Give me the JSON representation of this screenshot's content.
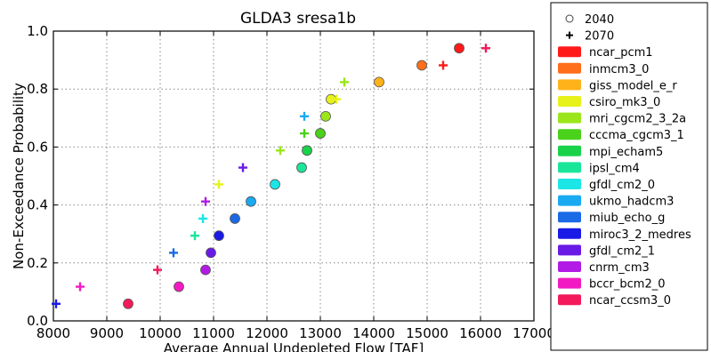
{
  "chart_data": {
    "type": "scatter",
    "title": "GLDA3 sresa1b",
    "xlabel": "Average Annual Undepleted Flow [TAF]",
    "ylabel": "Non-Exceedance Probability",
    "xlim": [
      8000,
      17000
    ],
    "ylim": [
      0.0,
      1.0
    ],
    "xticks": [
      "8000",
      "9000",
      "10000",
      "11000",
      "12000",
      "13000",
      "14000",
      "15000",
      "16000",
      "17000"
    ],
    "yticks": [
      "0.0",
      "0.2",
      "0.4",
      "0.6",
      "0.8",
      "1.0"
    ],
    "grid": true,
    "legend_placement": "outside-right",
    "marker_legend": [
      {
        "label": "2040",
        "marker": "circle"
      },
      {
        "label": "2070",
        "marker": "plus"
      }
    ],
    "models": [
      {
        "name": "ncar_pcm1",
        "color": "#ff1a1a"
      },
      {
        "name": "inmcm3_0",
        "color": "#ff6e1a"
      },
      {
        "name": "giss_model_e_r",
        "color": "#ffb21a"
      },
      {
        "name": "csiro_mk3_0",
        "color": "#e6f21a"
      },
      {
        "name": "mri_cgcm2_3_2a",
        "color": "#9ae61a"
      },
      {
        "name": "cccma_cgcm3_1",
        "color": "#4ad21a"
      },
      {
        "name": "mpi_echam5",
        "color": "#1ad24a"
      },
      {
        "name": "ipsl_cm4",
        "color": "#1ae69a"
      },
      {
        "name": "gfdl_cm2_0",
        "color": "#1ae6e6"
      },
      {
        "name": "ukmo_hadcm3",
        "color": "#1aaaf2"
      },
      {
        "name": "miub_echo_g",
        "color": "#1a6ae6"
      },
      {
        "name": "miroc3_2_medres",
        "color": "#1a1ae6"
      },
      {
        "name": "gfdl_cm2_1",
        "color": "#6a1ae6"
      },
      {
        "name": "cnrm_cm3",
        "color": "#b21ae6"
      },
      {
        "name": "bccr_bcm2_0",
        "color": "#f21ac2"
      },
      {
        "name": "ncar_ccsm3_0",
        "color": "#f21a5a"
      }
    ],
    "series": [
      {
        "name": "2040",
        "marker": "circle",
        "points": [
          {
            "model": "ncar_pcm1",
            "x": 15600,
            "y": 0.941
          },
          {
            "model": "inmcm3_0",
            "x": 14900,
            "y": 0.882
          },
          {
            "model": "giss_model_e_r",
            "x": 14100,
            "y": 0.824
          },
          {
            "model": "csiro_mk3_0",
            "x": 13200,
            "y": 0.765
          },
          {
            "model": "mri_cgcm2_3_2a",
            "x": 13100,
            "y": 0.706
          },
          {
            "model": "cccma_cgcm3_1",
            "x": 13000,
            "y": 0.647
          },
          {
            "model": "mpi_echam5",
            "x": 12750,
            "y": 0.588
          },
          {
            "model": "ipsl_cm4",
            "x": 12650,
            "y": 0.529
          },
          {
            "model": "gfdl_cm2_0",
            "x": 12150,
            "y": 0.471
          },
          {
            "model": "ukmo_hadcm3",
            "x": 11700,
            "y": 0.412
          },
          {
            "model": "miub_echo_g",
            "x": 11400,
            "y": 0.353
          },
          {
            "model": "miroc3_2_medres",
            "x": 11100,
            "y": 0.294
          },
          {
            "model": "gfdl_cm2_1",
            "x": 10950,
            "y": 0.235
          },
          {
            "model": "cnrm_cm3",
            "x": 10850,
            "y": 0.176
          },
          {
            "model": "bccr_bcm2_0",
            "x": 10350,
            "y": 0.118
          },
          {
            "model": "ncar_ccsm3_0",
            "x": 9400,
            "y": 0.059
          }
        ]
      },
      {
        "name": "2070",
        "marker": "plus",
        "points": [
          {
            "model": "ncar_ccsm3_0",
            "x": 16100,
            "y": 0.941
          },
          {
            "model": "ncar_pcm1",
            "x": 15300,
            "y": 0.882
          },
          {
            "model": "mri_cgcm2_3_2a",
            "x": 13450,
            "y": 0.824
          },
          {
            "model": "csiro_mk3_0",
            "x": 13300,
            "y": 0.765
          },
          {
            "model": "ukmo_hadcm3",
            "x": 12700,
            "y": 0.706
          },
          {
            "model": "cccma_cgcm3_1",
            "x": 12700,
            "y": 0.647
          },
          {
            "model": "mri_cgcm2_3_2a",
            "x": 12250,
            "y": 0.588
          },
          {
            "model": "gfdl_cm2_1",
            "x": 11550,
            "y": 0.529
          },
          {
            "model": "csiro_mk3_0",
            "x": 11100,
            "y": 0.471
          },
          {
            "model": "cnrm_cm3",
            "x": 10850,
            "y": 0.412
          },
          {
            "model": "gfdl_cm2_0",
            "x": 10800,
            "y": 0.353
          },
          {
            "model": "ipsl_cm4",
            "x": 10650,
            "y": 0.294
          },
          {
            "model": "miub_echo_g",
            "x": 10250,
            "y": 0.235
          },
          {
            "model": "ncar_ccsm3_0",
            "x": 9950,
            "y": 0.176
          },
          {
            "model": "bccr_bcm2_0",
            "x": 8500,
            "y": 0.118
          },
          {
            "model": "miroc3_2_medres",
            "x": 8050,
            "y": 0.059
          }
        ]
      }
    ]
  }
}
